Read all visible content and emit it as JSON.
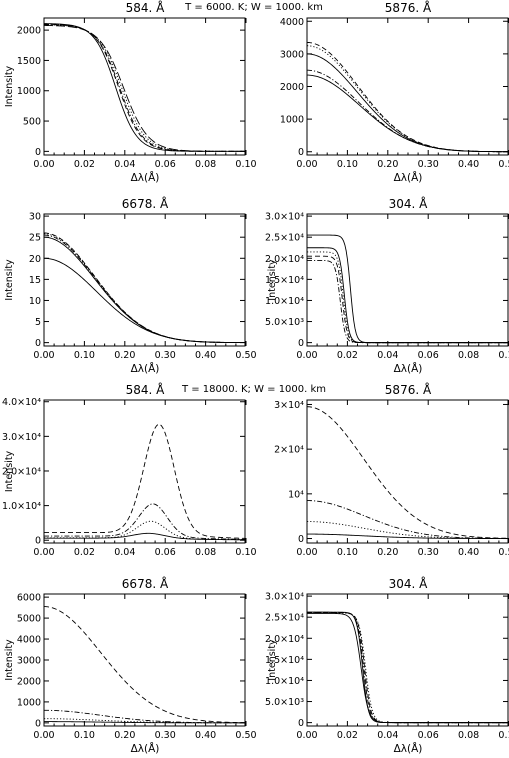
{
  "groups": [
    {
      "title": "T =  6000. K; W = 1000. km"
    },
    {
      "title": "T = 18000. K; W = 1000. km"
    }
  ],
  "tick_labels": {
    "x_0_10": [
      "0.00",
      "0.02",
      "0.04",
      "0.06",
      "0.08",
      "0.10"
    ],
    "x_0_50": [
      "0.00",
      "0.10",
      "0.20",
      "0.30",
      "0.40",
      "0.50"
    ]
  },
  "chart_data": [
    {
      "type": "line",
      "group": 0,
      "title": "584. Å",
      "xlabel": "Δλ(Å)",
      "ylabel": "Intensity",
      "xlim": [
        0,
        0.1
      ],
      "ylim": [
        -60,
        2200
      ],
      "yticks": [
        0,
        500,
        1000,
        1500,
        2000
      ],
      "ytick_labels": [
        "0",
        "500",
        "1000",
        "1500",
        "2000"
      ],
      "series": [
        {
          "style": "solid",
          "profile": "sigmoid",
          "peak": 2110,
          "center": 0.0355,
          "width": 0.0052
        },
        {
          "style": "dashed",
          "profile": "sigmoid",
          "peak": 2100,
          "center": 0.037,
          "width": 0.0055
        },
        {
          "style": "dotted",
          "profile": "sigmoid",
          "peak": 2090,
          "center": 0.0385,
          "width": 0.0058
        },
        {
          "style": "dashdot",
          "profile": "sigmoid",
          "peak": 2095,
          "center": 0.0375,
          "width": 0.0056
        },
        {
          "style": "longdash",
          "profile": "sigmoid",
          "peak": 2080,
          "center": 0.0395,
          "width": 0.006
        }
      ]
    },
    {
      "type": "line",
      "group": 0,
      "title": "5876. Å",
      "xlabel": "Δλ(Å)",
      "ylabel": "",
      "xlim": [
        0,
        0.5
      ],
      "ylim": [
        -100,
        4100
      ],
      "yticks": [
        0,
        1000,
        2000,
        3000,
        4000
      ],
      "ytick_labels": [
        "0",
        "1000",
        "2000",
        "3000",
        "4000"
      ],
      "series": [
        {
          "style": "dashed",
          "profile": "gauss",
          "peak": 3350,
          "sigma": 0.125
        },
        {
          "style": "dotted",
          "profile": "gauss",
          "peak": 3250,
          "sigma": 0.125
        },
        {
          "style": "solid",
          "profile": "gauss",
          "peak": 3000,
          "sigma": 0.125
        },
        {
          "style": "dashdot",
          "profile": "gauss",
          "peak": 2500,
          "sigma": 0.128
        },
        {
          "style": "solid",
          "profile": "gauss",
          "peak": 2350,
          "sigma": 0.13
        }
      ]
    },
    {
      "type": "line",
      "group": 0,
      "title": "6678. Å",
      "xlabel": "Δλ(Å)",
      "ylabel": "Intensity",
      "xlim": [
        0,
        0.5
      ],
      "ylim": [
        -0.8,
        30.5
      ],
      "yticks": [
        0,
        5,
        10,
        15,
        20,
        25,
        30
      ],
      "ytick_labels": [
        "0",
        "5",
        "10",
        "15",
        "20",
        "25",
        "30"
      ],
      "series": [
        {
          "style": "dashed",
          "profile": "gauss",
          "peak": 26.0,
          "sigma": 0.125
        },
        {
          "style": "dotted",
          "profile": "gauss",
          "peak": 25.8,
          "sigma": 0.125
        },
        {
          "style": "dashdot",
          "profile": "gauss",
          "peak": 25.5,
          "sigma": 0.125
        },
        {
          "style": "solid",
          "profile": "gauss",
          "peak": 25.0,
          "sigma": 0.125
        },
        {
          "style": "solid",
          "profile": "gauss",
          "peak": 20.0,
          "sigma": 0.13
        }
      ]
    },
    {
      "type": "line",
      "group": 0,
      "title": "304. Å",
      "xlabel": "Δλ(Å)",
      "ylabel": "Intensity",
      "xlim": [
        0,
        0.1
      ],
      "ylim": [
        -800,
        30500
      ],
      "yticks": [
        0,
        5000,
        10000,
        15000,
        20000,
        25000,
        30000
      ],
      "ytick_labels": [
        "0",
        "5.0×10³",
        "1.0×10⁴",
        "1.5×10⁴",
        "2.0×10⁴",
        "2.5×10⁴",
        "3.0×10⁴"
      ],
      "series": [
        {
          "style": "solid",
          "profile": "sigmoid",
          "peak": 25500,
          "center": 0.0215,
          "width": 0.0012
        },
        {
          "style": "solid",
          "profile": "sigmoid",
          "peak": 22500,
          "center": 0.0185,
          "width": 0.0012
        },
        {
          "style": "dotted",
          "profile": "sigmoid",
          "peak": 21500,
          "center": 0.018,
          "width": 0.0012
        },
        {
          "style": "dashed",
          "profile": "sigmoid",
          "peak": 20500,
          "center": 0.0175,
          "width": 0.0012
        },
        {
          "style": "dashdot",
          "profile": "sigmoid",
          "peak": 19500,
          "center": 0.0165,
          "width": 0.0012
        }
      ]
    },
    {
      "type": "line",
      "group": 1,
      "title": "584. Å",
      "xlabel": "",
      "ylabel": "Intensity",
      "xlim": [
        0,
        0.1
      ],
      "ylim": [
        -800,
        40500
      ],
      "yticks": [
        0,
        10000,
        20000,
        30000,
        40000
      ],
      "ytick_labels": [
        "0",
        "1.0×10⁴",
        "2.0×10⁴",
        "3.0×10⁴",
        "4.0×10⁴"
      ],
      "series": [
        {
          "style": "dashed",
          "profile": "emission",
          "peak": 33500,
          "base": 2200,
          "center": 0.057,
          "width": 0.0075
        },
        {
          "style": "dashdot",
          "profile": "emission",
          "peak": 10500,
          "base": 1200,
          "center": 0.054,
          "width": 0.007
        },
        {
          "style": "dotted",
          "profile": "emission",
          "peak": 5500,
          "base": 700,
          "center": 0.053,
          "width": 0.007
        },
        {
          "style": "solid",
          "profile": "emission",
          "peak": 2000,
          "base": 600,
          "center": 0.052,
          "width": 0.008
        }
      ]
    },
    {
      "type": "line",
      "group": 1,
      "title": "5876. Å",
      "xlabel": "",
      "ylabel": "",
      "xlim": [
        0,
        0.5
      ],
      "ylim": [
        -1000,
        31000
      ],
      "yticks": [
        0,
        10000,
        20000,
        30000
      ],
      "ytick_labels": [
        "0",
        "10⁴",
        "2×10⁴",
        "3×10⁴"
      ],
      "series": [
        {
          "style": "dashed",
          "profile": "gauss",
          "peak": 29500,
          "sigma": 0.14
        },
        {
          "style": "dashdot",
          "profile": "gauss",
          "peak": 8500,
          "sigma": 0.14
        },
        {
          "style": "dotted",
          "profile": "gauss",
          "peak": 3800,
          "sigma": 0.14
        },
        {
          "style": "solid",
          "profile": "gauss",
          "peak": 1000,
          "sigma": 0.14
        }
      ]
    },
    {
      "type": "line",
      "group": 1,
      "title": "6678. Å",
      "xlabel": "Δλ(Å)",
      "ylabel": "Intensity",
      "xlim": [
        0,
        0.5
      ],
      "ylim": [
        -150,
        6150
      ],
      "yticks": [
        0,
        1000,
        2000,
        3000,
        4000,
        5000,
        6000
      ],
      "ytick_labels": [
        "0",
        "1000",
        "2000",
        "3000",
        "4000",
        "5000",
        "6000"
      ],
      "series": [
        {
          "style": "dashed",
          "profile": "gauss",
          "peak": 5550,
          "sigma": 0.14
        },
        {
          "style": "dashdot",
          "profile": "gauss",
          "peak": 600,
          "sigma": 0.14
        },
        {
          "style": "dotted",
          "profile": "gauss",
          "peak": 200,
          "sigma": 0.14
        },
        {
          "style": "solid",
          "profile": "gauss",
          "peak": 60,
          "sigma": 0.14
        }
      ]
    },
    {
      "type": "line",
      "group": 1,
      "title": "304. Å",
      "xlabel": "Δλ(Å)",
      "ylabel": "Intensity",
      "xlim": [
        0,
        0.1
      ],
      "ylim": [
        -800,
        30500
      ],
      "yticks": [
        0,
        5000,
        10000,
        15000,
        20000,
        25000,
        30000
      ],
      "ytick_labels": [
        "0",
        "5.0×10³",
        "1.0×10⁴",
        "1.5×10⁴",
        "2.0×10⁴",
        "2.5×10⁴",
        "3.0×10⁴"
      ],
      "series": [
        {
          "style": "solid",
          "profile": "sigmoid",
          "peak": 26200,
          "center": 0.0275,
          "width": 0.0014
        },
        {
          "style": "dashed",
          "profile": "sigmoid",
          "peak": 26100,
          "center": 0.0285,
          "width": 0.0015
        },
        {
          "style": "dotted",
          "profile": "sigmoid",
          "peak": 26000,
          "center": 0.029,
          "width": 0.0016
        },
        {
          "style": "dashdot",
          "profile": "sigmoid",
          "peak": 26150,
          "center": 0.028,
          "width": 0.0015
        },
        {
          "style": "solid",
          "profile": "sigmoid",
          "peak": 25900,
          "center": 0.0268,
          "width": 0.0018
        }
      ]
    }
  ]
}
